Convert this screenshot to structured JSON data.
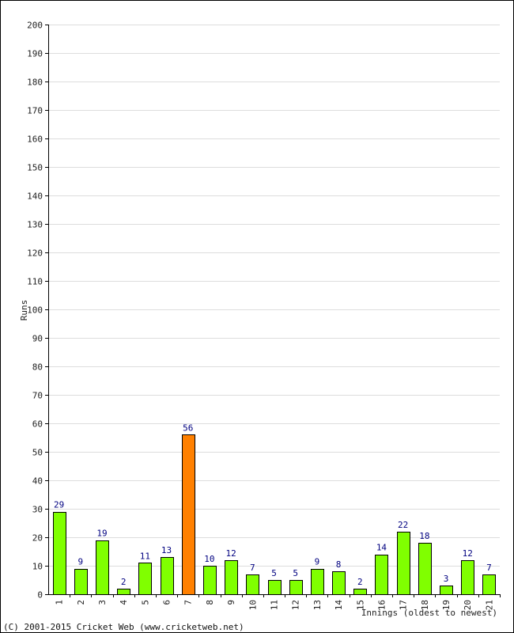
{
  "chart_data": {
    "type": "bar",
    "ylabel": "Runs",
    "xlabel": "Innings (oldest to newest)",
    "ylim": [
      0,
      200
    ],
    "y_ticks": [
      0,
      10,
      20,
      30,
      40,
      50,
      60,
      70,
      80,
      90,
      100,
      110,
      120,
      130,
      140,
      150,
      160,
      170,
      180,
      190,
      200
    ],
    "categories": [
      "1",
      "2",
      "3",
      "4",
      "5",
      "6",
      "7",
      "8",
      "9",
      "10",
      "11",
      "12",
      "13",
      "14",
      "15",
      "16",
      "17",
      "18",
      "19",
      "20",
      "21"
    ],
    "values": [
      29,
      9,
      19,
      2,
      11,
      13,
      56,
      10,
      12,
      7,
      5,
      5,
      9,
      8,
      2,
      14,
      22,
      18,
      3,
      12,
      7
    ],
    "highlight_index": 6,
    "grid": true,
    "legend": "none",
    "colors": {
      "bar": "#80ff00",
      "highlight": "#ff8000",
      "bar_border": "#000000",
      "grid": "#dddddd",
      "data_label": "#000080"
    }
  },
  "footer": {
    "credit": "(C) 2001-2015 Cricket Web (www.cricketweb.net)"
  }
}
